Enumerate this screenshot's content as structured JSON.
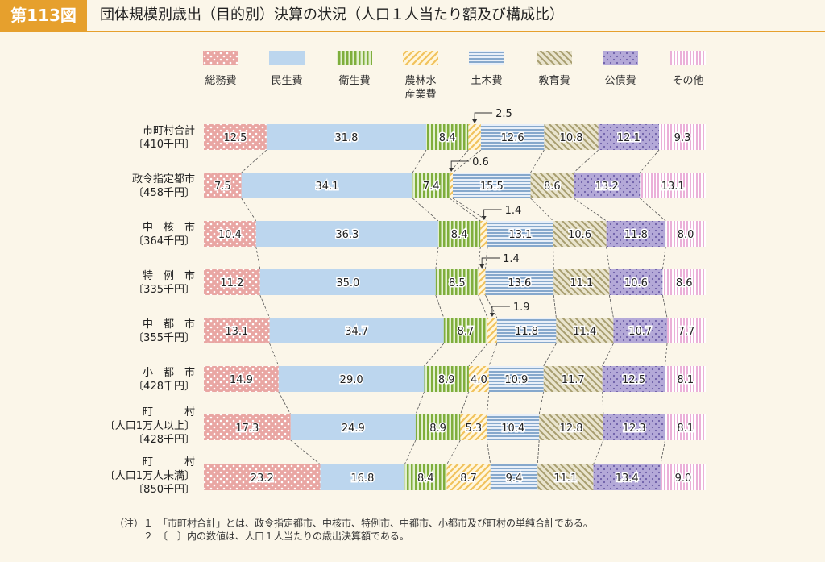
{
  "figure": {
    "number": "第113図",
    "title": "団体規模別歳出（目的別）決算の状況（人口１人当たり額及び構成比）"
  },
  "chart_data": {
    "type": "bar",
    "stacked": "percent",
    "orientation": "horizontal",
    "series": [
      {
        "name": "総務費",
        "color": "#e9a6a3",
        "pattern": "dots",
        "values": [
          12.5,
          7.5,
          10.4,
          11.2,
          13.1,
          14.9,
          17.3,
          23.2
        ]
      },
      {
        "name": "民生費",
        "color": "#bcd6ee",
        "pattern": "solid",
        "values": [
          31.8,
          34.1,
          36.3,
          35.0,
          34.7,
          29.0,
          24.9,
          16.8
        ]
      },
      {
        "name": "衛生費",
        "color": "#9cc05a",
        "pattern": "vstripes",
        "values": [
          8.4,
          7.4,
          8.4,
          8.5,
          8.7,
          8.9,
          8.9,
          8.4
        ]
      },
      {
        "name": "農林水\n産業費",
        "color": "#f1c25c",
        "pattern": "diagonal",
        "values": [
          2.5,
          0.6,
          1.4,
          1.4,
          1.9,
          4.0,
          5.3,
          8.7
        ]
      },
      {
        "name": "土木費",
        "color": "#86a8cc",
        "pattern": "hstripes",
        "values": [
          12.6,
          15.5,
          13.1,
          13.6,
          11.8,
          10.9,
          10.4,
          9.4
        ]
      },
      {
        "name": "教育費",
        "color": "#c9c19a",
        "pattern": "diagonal2",
        "values": [
          10.8,
          8.6,
          10.6,
          11.1,
          11.4,
          11.7,
          12.8,
          11.1
        ]
      },
      {
        "name": "公債費",
        "color": "#b4a9d8",
        "pattern": "dots2",
        "values": [
          12.1,
          13.2,
          11.8,
          10.6,
          10.7,
          12.5,
          12.3,
          13.4
        ]
      },
      {
        "name": "その他",
        "color": "#ebb0d8",
        "pattern": "vstripes2",
        "values": [
          9.3,
          13.1,
          8.0,
          8.6,
          7.7,
          8.1,
          8.1,
          9.0
        ]
      }
    ],
    "categories": [
      {
        "lines": [
          "市町村合計"
        ],
        "total": "〔410千円〕"
      },
      {
        "lines": [
          "政令指定都市"
        ],
        "total": "〔458千円〕"
      },
      {
        "lines": [
          "中　核　市"
        ],
        "total": "〔364千円〕"
      },
      {
        "lines": [
          "特　例　市"
        ],
        "total": "〔335千円〕"
      },
      {
        "lines": [
          "中　都　市"
        ],
        "total": "〔355千円〕"
      },
      {
        "lines": [
          "小　都　市"
        ],
        "total": "〔428千円〕"
      },
      {
        "lines": [
          "町　　　村",
          "〔人口1万人以上〕"
        ],
        "total": "〔428千円〕"
      },
      {
        "lines": [
          "町　　　村",
          "〔人口1万人未満〕"
        ],
        "total": "〔850千円〕"
      }
    ],
    "callouts": [
      {
        "row": 0,
        "text": "2.5"
      },
      {
        "row": 1,
        "text": "0.6"
      },
      {
        "row": 2,
        "text": "1.4"
      },
      {
        "row": 3,
        "text": "1.4"
      },
      {
        "row": 4,
        "text": "1.9"
      }
    ],
    "legend_position": "top"
  },
  "notes": [
    "（注）１　「市町村合計」とは、政令指定都市、中核市、特例市、中都市、小都市及び町村の単純合計である。",
    "　　　２　〔　〕内の数値は、人口１人当たりの歳出決算額である。"
  ]
}
